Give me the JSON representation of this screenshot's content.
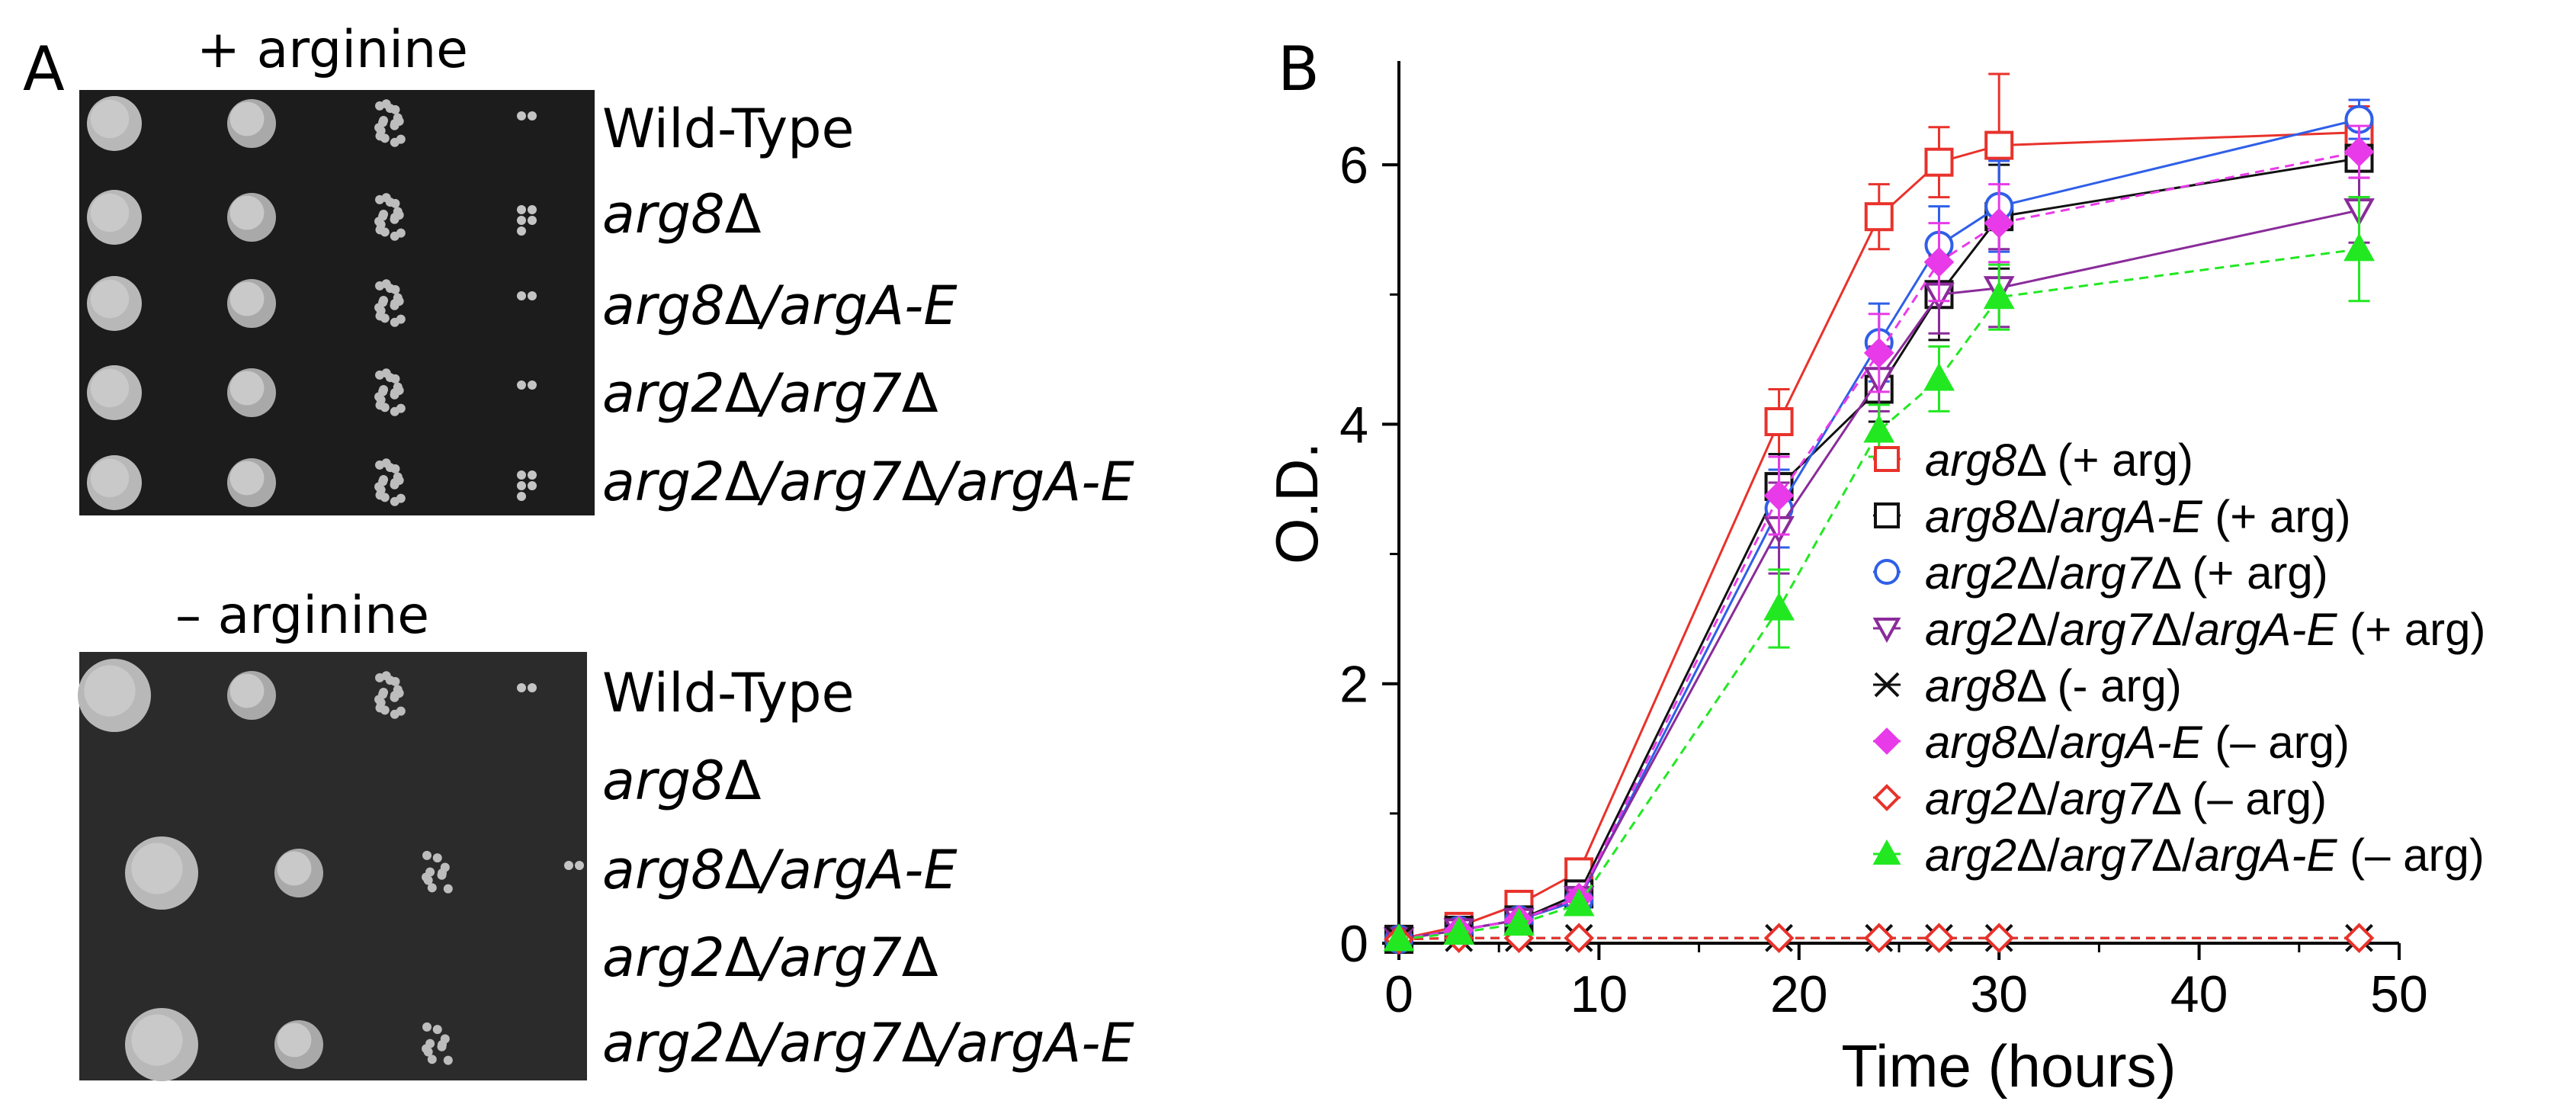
{
  "panel_a": {
    "label": "A",
    "top_title": "+ arginine",
    "bottom_title": "– arginine",
    "strains": [
      [
        {
          "t": "Wild-Type",
          "i": false
        }
      ],
      [
        {
          "t": "arg8",
          "i": true
        },
        {
          "t": "Δ",
          "i": false
        }
      ],
      [
        {
          "t": "arg8",
          "i": true
        },
        {
          "t": "Δ",
          "i": false
        },
        {
          "t": "/argA-E",
          "i": true
        }
      ],
      [
        {
          "t": "arg2",
          "i": true
        },
        {
          "t": "Δ",
          "i": false
        },
        {
          "t": "/arg7",
          "i": true
        },
        {
          "t": "Δ",
          "i": false
        }
      ],
      [
        {
          "t": "arg2",
          "i": true
        },
        {
          "t": "Δ",
          "i": false
        },
        {
          "t": "/arg7",
          "i": true
        },
        {
          "t": "Δ",
          "i": false
        },
        {
          "t": "/argA-E",
          "i": true
        }
      ]
    ],
    "top_growth": [
      [
        3,
        3,
        3,
        1
      ],
      [
        3,
        3,
        3,
        2
      ],
      [
        3,
        3,
        3,
        1
      ],
      [
        3,
        3,
        3,
        1
      ],
      [
        3,
        3,
        3,
        2
      ]
    ],
    "bottom_growth": [
      [
        4,
        3,
        3,
        1
      ],
      [
        0,
        0,
        0,
        0
      ],
      [
        4,
        3,
        2,
        1
      ],
      [
        0,
        0,
        0,
        0
      ],
      [
        4,
        3,
        2,
        0
      ]
    ]
  },
  "chart_data": {
    "label": "B",
    "type": "line",
    "xlabel": "Time (hours)",
    "ylabel": "O.D.",
    "xlim": [
      0,
      50
    ],
    "ylim": [
      0,
      6.8
    ],
    "xticks": [
      0,
      10,
      20,
      30,
      40,
      50
    ],
    "yticks": [
      0,
      2,
      4,
      6
    ],
    "x": [
      0,
      3,
      6,
      9,
      19,
      24,
      27,
      30,
      48
    ],
    "series": [
      {
        "name": "arg8Δ (+ arg)",
        "color": "#e8322b",
        "marker": "square",
        "dash": false,
        "values": [
          0.03,
          0.13,
          0.3,
          0.55,
          4.02,
          5.6,
          6.02,
          6.15,
          6.25
        ],
        "errors": [
          0.02,
          0.03,
          0.05,
          0.08,
          0.25,
          0.25,
          0.27,
          0.55,
          0.2
        ],
        "legend": [
          {
            "t": "arg8",
            "i": true
          },
          {
            "t": "Δ (+ arg)",
            "i": false
          }
        ]
      },
      {
        "name": "arg8Δ/argA-E (+ arg)",
        "color": "#111111",
        "marker": "square",
        "dash": false,
        "values": [
          0.03,
          0.1,
          0.18,
          0.38,
          3.52,
          4.27,
          5.0,
          5.6,
          6.05
        ],
        "errors": [
          0.02,
          0.03,
          0.04,
          0.07,
          0.25,
          0.25,
          0.35,
          0.4,
          0.3
        ],
        "legend": [
          {
            "t": "arg8",
            "i": true
          },
          {
            "t": "Δ/",
            "i": false
          },
          {
            "t": "argA-E",
            "i": true
          },
          {
            "t": " (+ arg)",
            "i": false
          }
        ]
      },
      {
        "name": "arg2Δ/arg7Δ (+ arg)",
        "color": "#2f5fe8",
        "marker": "circle",
        "dash": false,
        "values": [
          0.03,
          0.1,
          0.18,
          0.33,
          3.35,
          4.63,
          5.38,
          5.68,
          6.35
        ],
        "errors": [
          0.02,
          0.03,
          0.04,
          0.06,
          0.3,
          0.3,
          0.3,
          0.35,
          0.15
        ],
        "legend": [
          {
            "t": "arg2",
            "i": true
          },
          {
            "t": "Δ/",
            "i": false
          },
          {
            "t": "arg7",
            "i": true
          },
          {
            "t": "Δ (+ arg)",
            "i": false
          }
        ]
      },
      {
        "name": "arg2Δ/arg7Δ/argA-E (+ arg)",
        "color": "#8a2b9a",
        "marker": "triangle-down",
        "dash": false,
        "values": [
          0.03,
          0.1,
          0.18,
          0.35,
          3.2,
          4.35,
          5.0,
          5.05,
          5.65
        ],
        "errors": [
          0.02,
          0.03,
          0.04,
          0.06,
          0.35,
          0.25,
          0.3,
          0.3,
          0.25
        ],
        "legend": [
          {
            "t": "arg2",
            "i": true
          },
          {
            "t": "Δ/",
            "i": false
          },
          {
            "t": "arg7",
            "i": true
          },
          {
            "t": "Δ/",
            "i": false
          },
          {
            "t": "argA-E",
            "i": true
          },
          {
            "t": " (+ arg)",
            "i": false
          }
        ]
      },
      {
        "name": "arg8Δ (- arg)",
        "color": "#111111",
        "marker": "x",
        "dash": true,
        "values": [
          0.03,
          0.04,
          0.04,
          0.04,
          0.04,
          0.04,
          0.04,
          0.04,
          0.04
        ],
        "errors": [
          0,
          0,
          0,
          0,
          0,
          0,
          0,
          0,
          0
        ],
        "legend": [
          {
            "t": "arg8",
            "i": true
          },
          {
            "t": "Δ (- arg)",
            "i": false
          }
        ]
      },
      {
        "name": "arg8Δ/argA-E (– arg)",
        "color": "#e83ae8",
        "marker": "diamond-filled",
        "dash": true,
        "values": [
          0.03,
          0.1,
          0.18,
          0.35,
          3.45,
          4.55,
          5.25,
          5.55,
          6.1
        ],
        "errors": [
          0.02,
          0.03,
          0.04,
          0.06,
          0.3,
          0.3,
          0.3,
          0.3,
          0.2
        ],
        "legend": [
          {
            "t": "arg8",
            "i": true
          },
          {
            "t": "Δ/",
            "i": false
          },
          {
            "t": "argA-E",
            "i": true
          },
          {
            "t": " (– arg)",
            "i": false
          }
        ]
      },
      {
        "name": "arg2Δ/arg7Δ (– arg)",
        "color": "#e8322b",
        "marker": "diamond",
        "dash": true,
        "values": [
          0.03,
          0.04,
          0.04,
          0.04,
          0.04,
          0.04,
          0.04,
          0.04,
          0.04
        ],
        "errors": [
          0,
          0,
          0,
          0,
          0,
          0,
          0,
          0,
          0
        ],
        "legend": [
          {
            "t": "arg2",
            "i": true
          },
          {
            "t": "Δ/",
            "i": false
          },
          {
            "t": "arg7",
            "i": true
          },
          {
            "t": "Δ (– arg)",
            "i": false
          }
        ]
      },
      {
        "name": "arg2Δ/arg7Δ/argA-E (– arg)",
        "color": "#22e822",
        "marker": "triangle-filled",
        "dash": true,
        "values": [
          0.03,
          0.08,
          0.15,
          0.3,
          2.58,
          3.95,
          4.35,
          4.98,
          5.35
        ],
        "errors": [
          0.02,
          0.03,
          0.04,
          0.05,
          0.3,
          0.2,
          0.25,
          0.25,
          0.4
        ],
        "legend": [
          {
            "t": "arg2",
            "i": true
          },
          {
            "t": "Δ/",
            "i": false
          },
          {
            "t": "arg7",
            "i": true
          },
          {
            "t": "Δ/",
            "i": false
          },
          {
            "t": "argA-E",
            "i": true
          },
          {
            "t": " (– arg)",
            "i": false
          }
        ]
      }
    ]
  }
}
